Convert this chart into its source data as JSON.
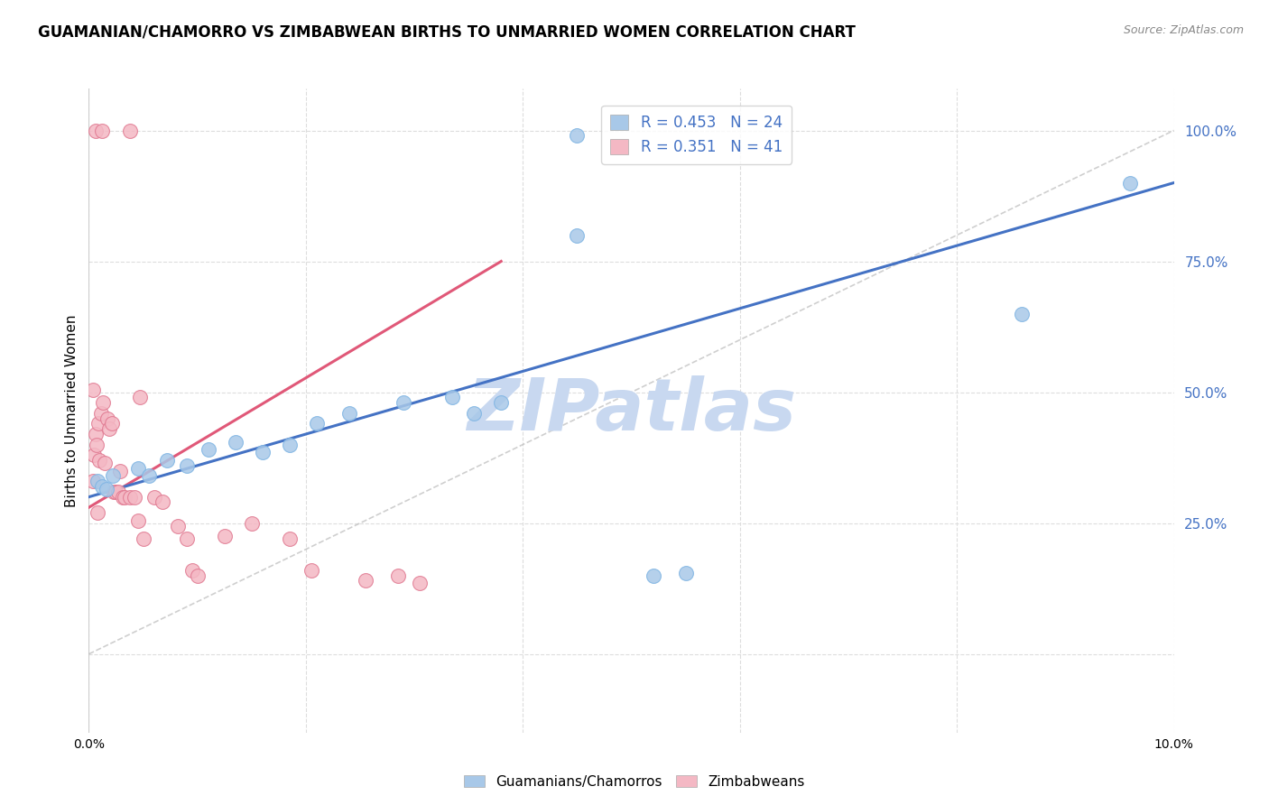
{
  "title": "GUAMANIAN/CHAMORRO VS ZIMBABWEAN BIRTHS TO UNMARRIED WOMEN CORRELATION CHART",
  "source": "Source: ZipAtlas.com",
  "ylabel": "Births to Unmarried Women",
  "xlim": [
    0.0,
    10.0
  ],
  "ylim": [
    -15.0,
    108.0
  ],
  "plot_ymin": 0.0,
  "plot_ymax": 100.0,
  "yticks": [
    0,
    25,
    50,
    75,
    100
  ],
  "ytick_labels": [
    "",
    "25.0%",
    "50.0%",
    "75.0%",
    "100.0%"
  ],
  "legend_r1": "R = 0.453",
  "legend_n1": "N = 24",
  "legend_r2": "R = 0.351",
  "legend_n2": "N = 41",
  "color_blue": "#A8C8E8",
  "color_blue_edge": "#7EB4E3",
  "color_pink": "#F4B8C4",
  "color_pink_edge": "#E07890",
  "color_blue_line": "#4472C4",
  "color_pink_line": "#E05878",
  "color_diag": "#BBBBBB",
  "watermark": "ZIPatlas",
  "watermark_color": "#C8D8F0",
  "blue_points": [
    [
      0.08,
      33.0
    ],
    [
      0.12,
      32.0
    ],
    [
      0.16,
      31.5
    ],
    [
      0.22,
      34.0
    ],
    [
      0.45,
      35.5
    ],
    [
      0.55,
      34.0
    ],
    [
      0.72,
      37.0
    ],
    [
      0.9,
      36.0
    ],
    [
      1.1,
      39.0
    ],
    [
      1.35,
      40.5
    ],
    [
      1.6,
      38.5
    ],
    [
      1.85,
      40.0
    ],
    [
      2.1,
      44.0
    ],
    [
      2.4,
      46.0
    ],
    [
      2.9,
      48.0
    ],
    [
      3.35,
      49.0
    ],
    [
      3.55,
      46.0
    ],
    [
      3.8,
      48.0
    ],
    [
      4.5,
      99.0
    ],
    [
      4.5,
      80.0
    ],
    [
      5.2,
      15.0
    ],
    [
      5.5,
      15.5
    ],
    [
      8.6,
      65.0
    ],
    [
      9.6,
      90.0
    ]
  ],
  "pink_points": [
    [
      0.04,
      33.0
    ],
    [
      0.05,
      38.0
    ],
    [
      0.06,
      42.0
    ],
    [
      0.07,
      40.0
    ],
    [
      0.09,
      44.0
    ],
    [
      0.1,
      37.0
    ],
    [
      0.11,
      46.0
    ],
    [
      0.13,
      48.0
    ],
    [
      0.15,
      36.5
    ],
    [
      0.17,
      45.0
    ],
    [
      0.19,
      43.0
    ],
    [
      0.21,
      44.0
    ],
    [
      0.23,
      31.0
    ],
    [
      0.25,
      31.0
    ],
    [
      0.27,
      31.0
    ],
    [
      0.29,
      35.0
    ],
    [
      0.31,
      30.0
    ],
    [
      0.33,
      30.0
    ],
    [
      0.38,
      30.0
    ],
    [
      0.42,
      30.0
    ],
    [
      0.47,
      49.0
    ],
    [
      0.6,
      30.0
    ],
    [
      0.68,
      29.0
    ],
    [
      0.82,
      24.5
    ],
    [
      0.9,
      22.0
    ],
    [
      0.95,
      16.0
    ],
    [
      1.0,
      15.0
    ],
    [
      1.25,
      22.5
    ],
    [
      1.5,
      25.0
    ],
    [
      1.85,
      22.0
    ],
    [
      2.05,
      16.0
    ],
    [
      2.55,
      14.0
    ],
    [
      2.85,
      15.0
    ],
    [
      3.05,
      13.5
    ],
    [
      0.06,
      100.0
    ],
    [
      0.12,
      100.0
    ],
    [
      0.38,
      100.0
    ],
    [
      0.04,
      50.5
    ],
    [
      0.45,
      25.5
    ],
    [
      0.5,
      22.0
    ],
    [
      0.08,
      27.0
    ]
  ],
  "blue_reg": [
    0.0,
    30.0,
    10.0,
    90.0
  ],
  "pink_reg": [
    0.0,
    28.0,
    3.8,
    75.0
  ],
  "diag_line": [
    0.0,
    0.0,
    10.0,
    100.0
  ],
  "background_color": "#FFFFFF",
  "grid_color": "#DDDDDD"
}
